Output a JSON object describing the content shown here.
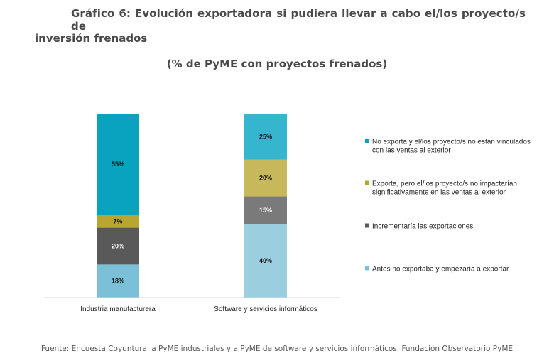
{
  "header": {
    "title_line1": "Gráfico 6: Evolución exportadora si pudiera llevar a cabo el/los proyecto/s de",
    "title_line2": "inversión frenados",
    "subtitle": "(% de PyME con proyectos frenados)"
  },
  "footer": {
    "source": "Fuente: Encuesta Coyuntural a PyME industriales y a PyME de software y servicios informáticos. Fundación Observatorio PyME"
  },
  "chart_data": {
    "type": "bar",
    "stacked": true,
    "title": "Gráfico 6: Evolución exportadora si pudiera llevar a cabo el/los proyecto/s de inversión frenados",
    "subtitle": "(% de PyME con proyectos frenados)",
    "xlabel": "",
    "ylabel": "",
    "ylim": [
      0,
      100
    ],
    "grid": false,
    "legend_position": "right",
    "categories": [
      "Industria manufacturera",
      "Software y servicios informáticos"
    ],
    "series": [
      {
        "name": "Antes no exportaba y empezaría a exportar",
        "legend_lines": [
          "Antes no exportaba y empezaría a exportar"
        ],
        "values": [
          18,
          40
        ],
        "labels": [
          "18%",
          "40%"
        ],
        "colors": [
          "#7bc0d7",
          "#9bcedf"
        ],
        "label_color": "#111111"
      },
      {
        "name": "Incrementaría las exportaciones",
        "legend_lines": [
          "Incrementaría las exportaciones"
        ],
        "values": [
          20,
          15
        ],
        "labels": [
          "20%",
          "15%"
        ],
        "colors": [
          "#595959",
          "#7a7a7a"
        ],
        "label_color": "#ffffff"
      },
      {
        "name": "Exporta, pero el/los proyecto/s no impactarían significativamente en las ventas al exterior",
        "legend_lines": [
          "Exporta, pero el/los proyecto/s no impactarían",
          "significativamente en las ventas al exterior"
        ],
        "values": [
          7,
          20
        ],
        "labels": [
          "7%",
          "20%"
        ],
        "colors": [
          "#b8a630",
          "#c8b85c"
        ],
        "label_color": "#111111"
      },
      {
        "name": "No exporta y el/los proyecto/s no están vinculados con las ventas al exterior",
        "legend_lines": [
          "No exporta y el/los proyecto/s no están vinculados",
          "con las ventas al exterior"
        ],
        "values": [
          55,
          25
        ],
        "labels": [
          "55%",
          "25%"
        ],
        "colors": [
          "#0aa3bf",
          "#36b5cf"
        ],
        "label_color": "#111111"
      }
    ],
    "legend_order": [
      3,
      2,
      1,
      0
    ],
    "axis_color": "#d9d9d9"
  }
}
